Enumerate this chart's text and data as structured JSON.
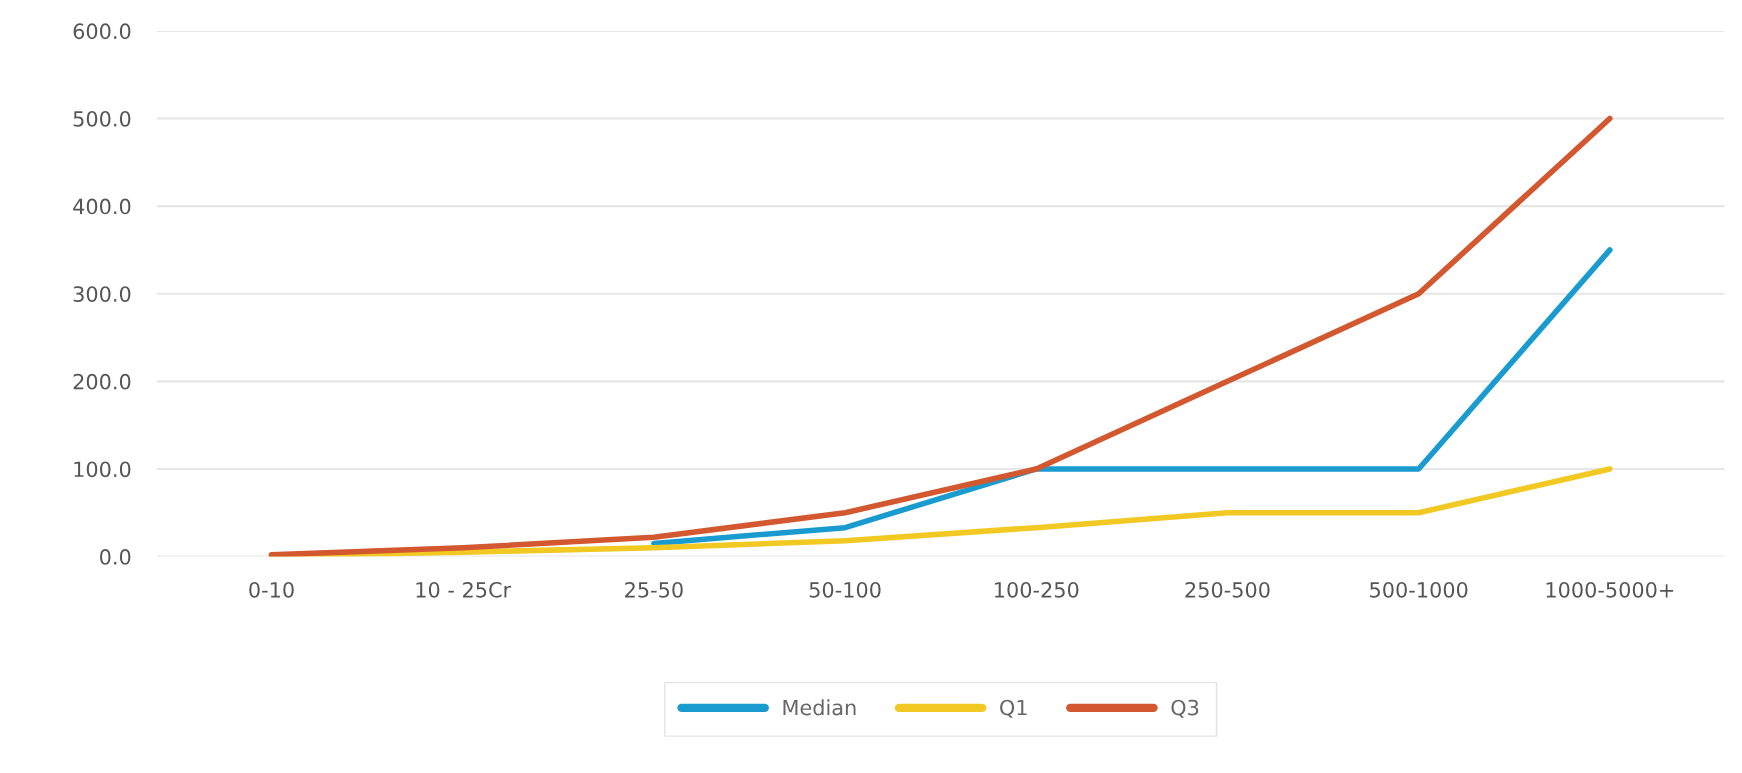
{
  "chart_data": {
    "type": "line",
    "categories": [
      "0-10",
      "10 - 25Cr",
      "25-50",
      "50-100",
      "100-250",
      "250-500",
      "500-1000",
      "1000-5000+"
    ],
    "series": [
      {
        "name": "Median",
        "color": "#1a9bd0",
        "values": [
          null,
          null,
          15,
          33,
          100,
          100,
          100,
          350
        ]
      },
      {
        "name": "Q1",
        "color": "#f2c923",
        "values": [
          1,
          5,
          10,
          18,
          33,
          50,
          50,
          100
        ]
      },
      {
        "name": "Q3",
        "color": "#d4582f",
        "values": [
          2,
          10,
          22,
          50,
          100,
          200,
          300,
          500
        ]
      }
    ],
    "ylim": [
      0,
      600
    ],
    "yticks": [
      {
        "value": 0,
        "label": "0.0"
      },
      {
        "value": 100,
        "label": "100.0"
      },
      {
        "value": 200,
        "label": "200.0"
      },
      {
        "value": 300,
        "label": "300.0"
      },
      {
        "value": 400,
        "label": "400.0"
      },
      {
        "value": 500,
        "label": "500.0"
      },
      {
        "value": 600,
        "label": "600.0"
      }
    ],
    "grid": "y",
    "legend": "bottom",
    "marker": "none",
    "line_style": "solid"
  }
}
